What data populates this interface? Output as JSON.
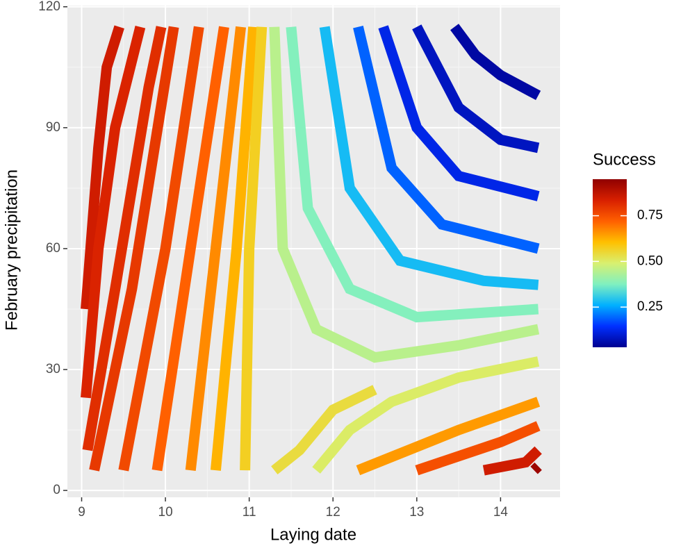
{
  "chart_data": {
    "type": "contour",
    "x_label": "Laying date",
    "y_label": "February precipitation",
    "legend_title": "Success",
    "xlim": [
      8.83,
      14.71
    ],
    "ylim": [
      -1.7,
      120.3
    ],
    "xticks": [
      9,
      10,
      11,
      12,
      13,
      14
    ],
    "yticks": [
      0,
      30,
      60,
      90,
      120
    ],
    "grid": true,
    "minor_grid": true,
    "colorbar_lim": [
      0.03,
      0.95
    ],
    "colorbar_ticks": [
      0.25,
      {
        "value": 0.5,
        "label": "0.50"
      },
      0.75
    ],
    "colorscale": [
      "#000090",
      "#0030ff",
      "#00b0ff",
      "#80f0c0",
      "#d8f070",
      "#ffc000",
      "#ff6000",
      "#d82000",
      "#900000"
    ],
    "series": [
      {
        "level": 0.85,
        "x": [
          9.05,
          9.2,
          9.3,
          9.45
        ],
        "y": [
          45,
          85,
          105,
          115
        ]
      },
      {
        "level": 0.83,
        "x": [
          9.05,
          9.2,
          9.4,
          9.7
        ],
        "y": [
          23,
          60,
          90,
          115
        ]
      },
      {
        "level": 0.81,
        "x": [
          9.07,
          9.4,
          9.8,
          9.95
        ],
        "y": [
          10,
          50,
          100,
          115
        ]
      },
      {
        "level": 0.79,
        "x": [
          9.15,
          9.6,
          10.1
        ],
        "y": [
          5,
          50,
          115
        ]
      },
      {
        "level": 0.76,
        "x": [
          9.5,
          10.0,
          10.4
        ],
        "y": [
          5,
          60,
          115
        ]
      },
      {
        "level": 0.72,
        "x": [
          9.9,
          10.3,
          10.7
        ],
        "y": [
          5,
          60,
          115
        ]
      },
      {
        "level": 0.67,
        "x": [
          10.3,
          10.6,
          10.9
        ],
        "y": [
          5,
          60,
          115
        ]
      },
      {
        "level": 0.62,
        "x": [
          10.6,
          10.85,
          11.05
        ],
        "y": [
          5,
          60,
          115
        ]
      },
      {
        "level": 0.57,
        "x": [
          10.95,
          11.0,
          11.15
        ],
        "y": [
          5,
          60,
          115
        ]
      },
      {
        "level": 0.54,
        "x": [
          11.3,
          11.6,
          12.0,
          12.5
        ],
        "y": [
          5,
          10,
          20,
          25
        ]
      },
      {
        "level": 0.5,
        "x": [
          11.8,
          12.2,
          12.7,
          13.5,
          14.45
        ],
        "y": [
          5,
          15,
          22,
          28,
          32
        ]
      },
      {
        "level": 0.45,
        "x": [
          11.3,
          11.4,
          11.8,
          12.5,
          13.5,
          14.45
        ],
        "y": [
          115,
          60,
          40,
          33,
          36,
          40
        ]
      },
      {
        "level": 0.38,
        "x": [
          11.5,
          11.7,
          12.2,
          13.0,
          14.45
        ],
        "y": [
          115,
          70,
          50,
          43,
          45
        ]
      },
      {
        "level": 0.28,
        "x": [
          11.9,
          12.2,
          12.8,
          13.8,
          14.45
        ],
        "y": [
          115,
          75,
          57,
          52,
          51
        ]
      },
      {
        "level": 0.19,
        "x": [
          12.3,
          12.7,
          13.3,
          14.45
        ],
        "y": [
          115,
          80,
          66,
          60
        ]
      },
      {
        "level": 0.12,
        "x": [
          12.6,
          13.0,
          13.5,
          14.45
        ],
        "y": [
          115,
          90,
          78,
          73
        ]
      },
      {
        "level": 0.08,
        "x": [
          13.0,
          13.5,
          14.0,
          14.45
        ],
        "y": [
          115,
          95,
          87,
          85
        ]
      },
      {
        "level": 0.05,
        "x": [
          13.45,
          13.7,
          14.0,
          14.45
        ],
        "y": [
          115,
          108,
          103,
          98
        ]
      },
      {
        "level": 0.65,
        "x": [
          12.3,
          13.5,
          14.45
        ],
        "y": [
          5,
          15,
          22
        ]
      },
      {
        "level": 0.75,
        "x": [
          13.0,
          14.0,
          14.45
        ],
        "y": [
          5,
          12,
          16
        ]
      },
      {
        "level": 0.85,
        "x": [
          13.8,
          14.3,
          14.45
        ],
        "y": [
          5,
          7,
          10
        ]
      },
      {
        "level": 0.93,
        "x": [
          14.4,
          14.45
        ],
        "y": [
          5,
          6
        ]
      }
    ]
  }
}
